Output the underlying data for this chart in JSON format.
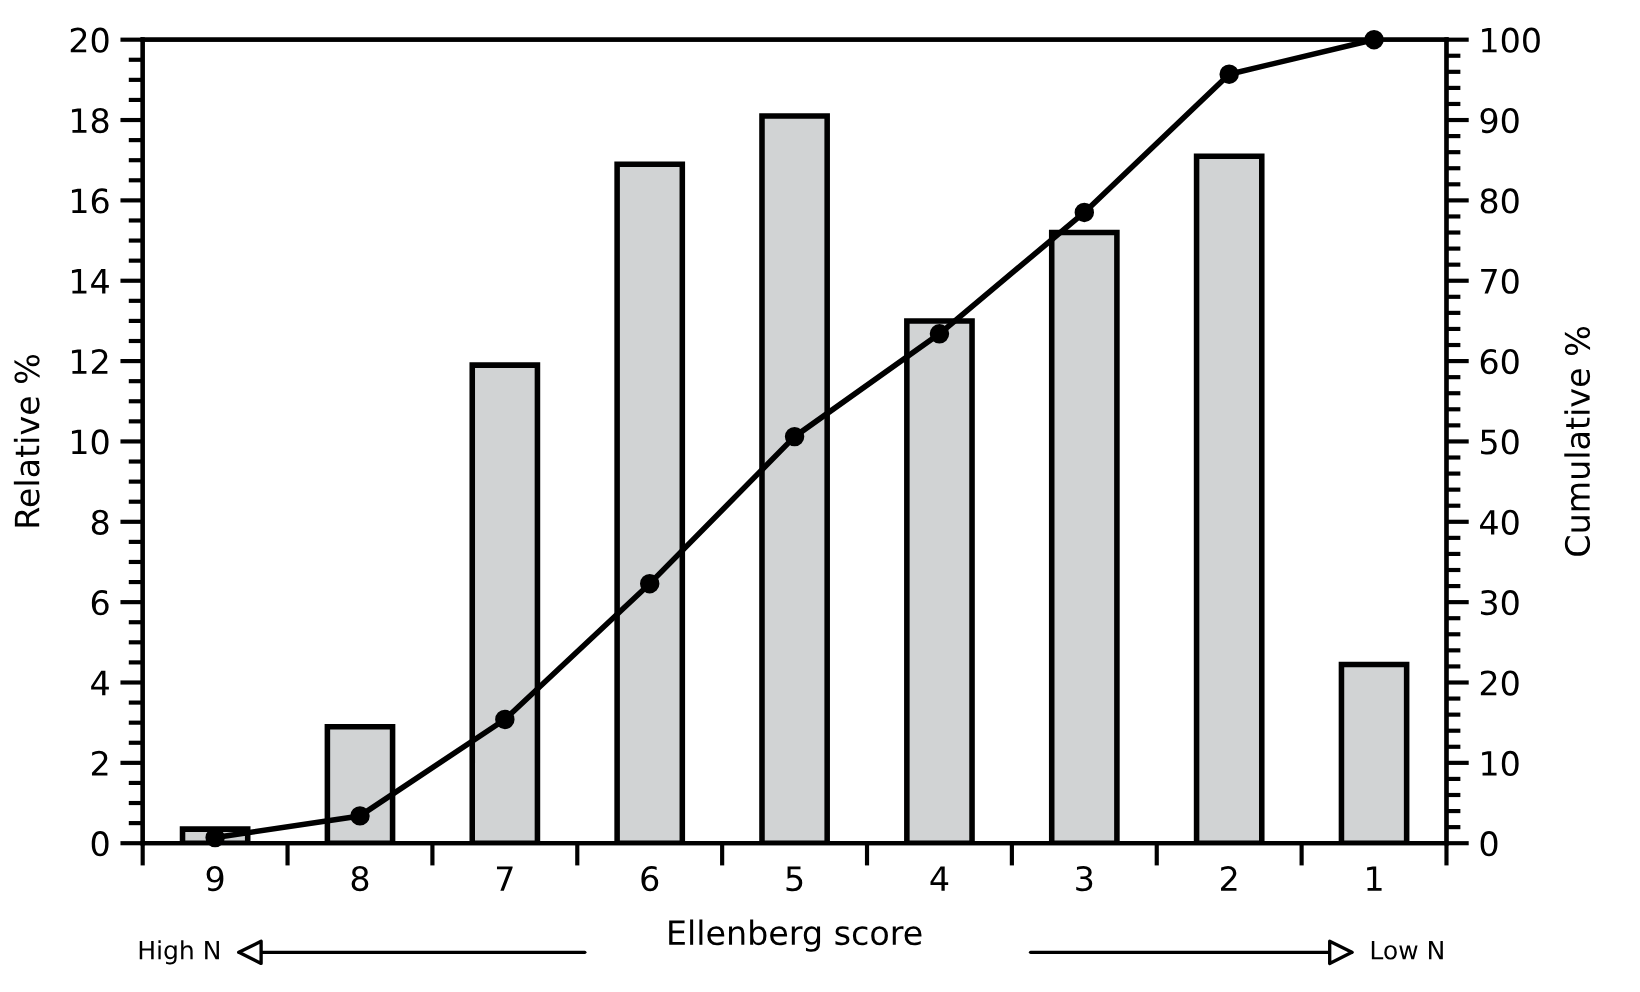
{
  "chart_data": {
    "type": "bar",
    "xlabel": "Ellenberg score",
    "ylabel": "Relative %",
    "y2label": "Cumulative %",
    "categories": [
      "9",
      "8",
      "7",
      "6",
      "5",
      "4",
      "3",
      "2",
      "1"
    ],
    "series": [
      {
        "color": "#d1d3d4",
        "values": [
          0.35,
          2.9,
          11.9,
          16.9,
          18.1,
          13.0,
          15.2,
          17.1,
          4.45
        ]
      },
      {
        "type": "line",
        "axis": "y2",
        "color": "#000000",
        "marker": "circle",
        "line_style": "solid",
        "values": [
          0.7,
          3.4,
          15.4,
          32.3,
          50.6,
          63.4,
          78.5,
          95.7,
          100
        ]
      }
    ],
    "ylim": [
      0,
      20
    ],
    "yticks": [
      0,
      2,
      4,
      6,
      8,
      10,
      12,
      14,
      16,
      18,
      20
    ],
    "y2lim": [
      0,
      100
    ],
    "y2ticks": [
      0,
      10,
      20,
      30,
      40,
      50,
      60,
      70,
      80,
      90,
      100
    ],
    "annotations": [
      "High N",
      "Low N"
    ],
    "grid": false,
    "legend": false
  }
}
